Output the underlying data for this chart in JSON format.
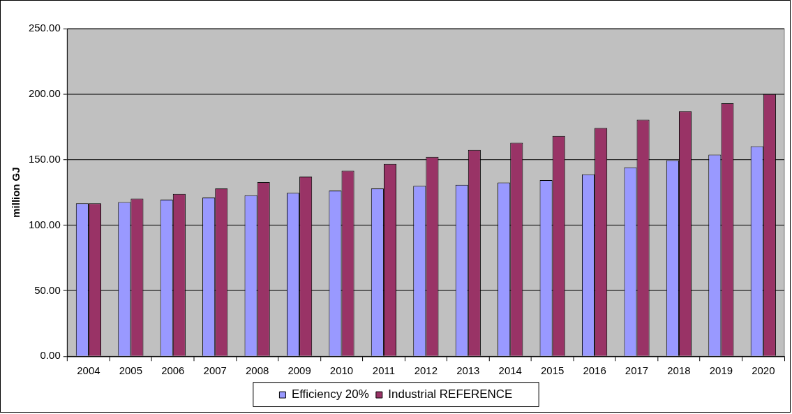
{
  "chart_data": {
    "type": "bar",
    "ylabel": "million GJ",
    "categories": [
      "2004",
      "2005",
      "2006",
      "2007",
      "2008",
      "2009",
      "2010",
      "2011",
      "2012",
      "2013",
      "2014",
      "2015",
      "2016",
      "2017",
      "2018",
      "2019",
      "2020"
    ],
    "series": [
      {
        "name": "Efficiency 20%",
        "color": "#9999ff",
        "values": [
          116.6,
          117.6,
          119.4,
          121.1,
          122.8,
          124.7,
          126.4,
          128.0,
          129.9,
          130.8,
          132.5,
          134.4,
          138.7,
          144.1,
          149.5,
          153.8,
          160.2
        ]
      },
      {
        "name": "Industrial REFERENCE",
        "color": "#993366",
        "values": [
          116.6,
          120.2,
          123.9,
          128.0,
          132.7,
          137.0,
          141.5,
          146.7,
          152.1,
          157.4,
          162.8,
          168.0,
          174.2,
          180.4,
          186.9,
          192.9,
          200.0
        ]
      }
    ],
    "ylim": [
      0,
      250
    ],
    "yticks": [
      {
        "value": 0,
        "label": "0.00"
      },
      {
        "value": 50,
        "label": "50.00"
      },
      {
        "value": 100,
        "label": "100.00"
      },
      {
        "value": 150,
        "label": "150.00"
      },
      {
        "value": 200,
        "label": "200.00"
      },
      {
        "value": 250,
        "label": "250.00"
      }
    ],
    "grid": "y",
    "legend": "bottom"
  }
}
